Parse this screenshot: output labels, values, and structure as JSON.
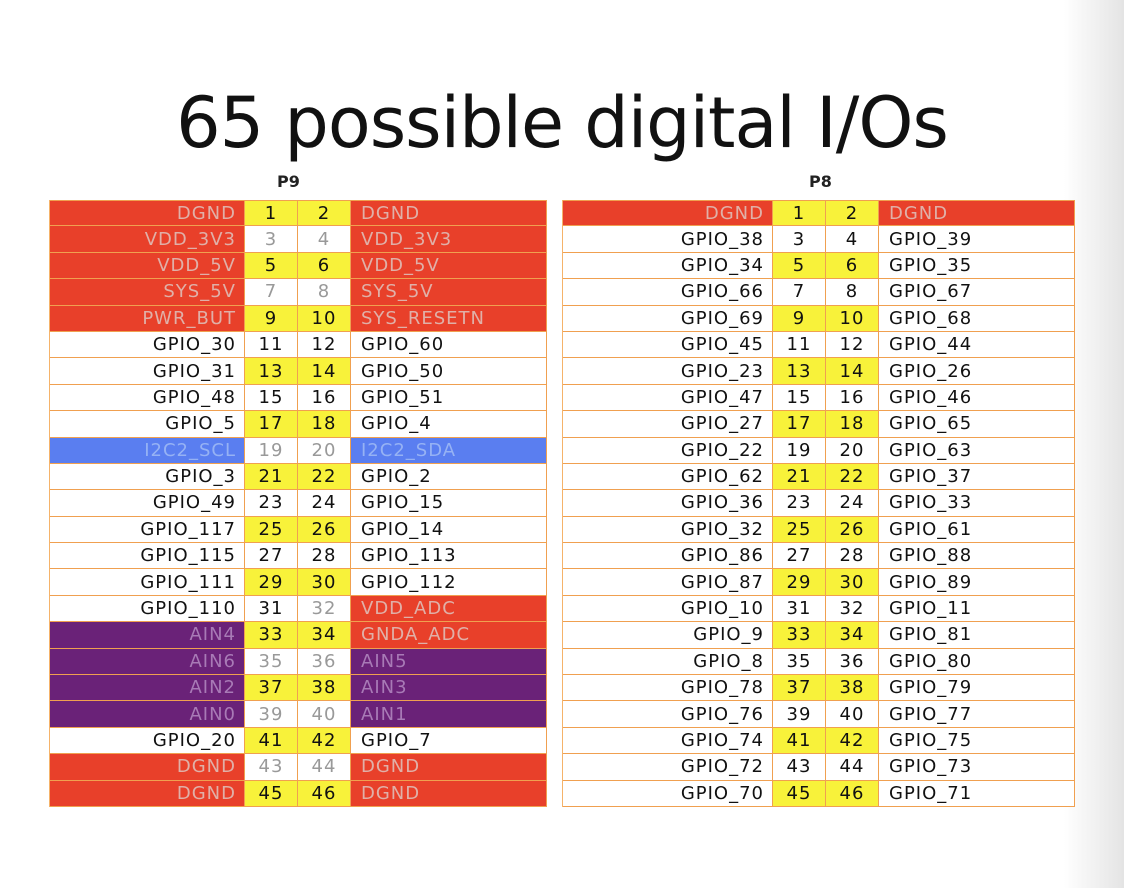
{
  "title": "65 possible digital I/Os",
  "headers": {
    "p9": "P9",
    "p8": "P8"
  },
  "colors": {
    "gpio": "#ffffff",
    "power": "#e8402a",
    "i2c": "#5a7ef0",
    "analog": "#6a2278",
    "pin_highlight": "#f8f23a",
    "border": "#f0a050"
  },
  "p9": [
    {
      "left": "DGND",
      "a": "1",
      "b": "2",
      "right": "DGND",
      "lt": "ground",
      "rt": "ground",
      "hl": true
    },
    {
      "left": "VDD_3V3",
      "a": "3",
      "b": "4",
      "right": "VDD_3V3",
      "lt": "power",
      "rt": "power",
      "hl": false
    },
    {
      "left": "VDD_5V",
      "a": "5",
      "b": "6",
      "right": "VDD_5V",
      "lt": "power",
      "rt": "power",
      "hl": true
    },
    {
      "left": "SYS_5V",
      "a": "7",
      "b": "8",
      "right": "SYS_5V",
      "lt": "power",
      "rt": "power",
      "hl": false
    },
    {
      "left": "PWR_BUT",
      "a": "9",
      "b": "10",
      "right": "SYS_RESETN",
      "lt": "power",
      "rt": "power",
      "hl": true
    },
    {
      "left": "GPIO_30",
      "a": "11",
      "b": "12",
      "right": "GPIO_60",
      "lt": "gpio",
      "rt": "gpio",
      "hl": false
    },
    {
      "left": "GPIO_31",
      "a": "13",
      "b": "14",
      "right": "GPIO_50",
      "lt": "gpio",
      "rt": "gpio",
      "hl": true
    },
    {
      "left": "GPIO_48",
      "a": "15",
      "b": "16",
      "right": "GPIO_51",
      "lt": "gpio",
      "rt": "gpio",
      "hl": false
    },
    {
      "left": "GPIO_5",
      "a": "17",
      "b": "18",
      "right": "GPIO_4",
      "lt": "gpio",
      "rt": "gpio",
      "hl": true
    },
    {
      "left": "I2C2_SCL",
      "a": "19",
      "b": "20",
      "right": "I2C2_SDA",
      "lt": "i2c",
      "rt": "i2c",
      "hl": false
    },
    {
      "left": "GPIO_3",
      "a": "21",
      "b": "22",
      "right": "GPIO_2",
      "lt": "gpio",
      "rt": "gpio",
      "hl": true
    },
    {
      "left": "GPIO_49",
      "a": "23",
      "b": "24",
      "right": "GPIO_15",
      "lt": "gpio",
      "rt": "gpio",
      "hl": false
    },
    {
      "left": "GPIO_117",
      "a": "25",
      "b": "26",
      "right": "GPIO_14",
      "lt": "gpio",
      "rt": "gpio",
      "hl": true
    },
    {
      "left": "GPIO_115",
      "a": "27",
      "b": "28",
      "right": "GPIO_113",
      "lt": "gpio",
      "rt": "gpio",
      "hl": false
    },
    {
      "left": "GPIO_111",
      "a": "29",
      "b": "30",
      "right": "GPIO_112",
      "lt": "gpio",
      "rt": "gpio",
      "hl": true
    },
    {
      "left": "GPIO_110",
      "a": "31",
      "b": "32",
      "right": "VDD_ADC",
      "lt": "gpio",
      "rt": "power",
      "hl": false
    },
    {
      "left": "AIN4",
      "a": "33",
      "b": "34",
      "right": "GNDA_ADC",
      "lt": "analog",
      "rt": "power",
      "hl": true
    },
    {
      "left": "AIN6",
      "a": "35",
      "b": "36",
      "right": "AIN5",
      "lt": "analog",
      "rt": "analog",
      "hl": false
    },
    {
      "left": "AIN2",
      "a": "37",
      "b": "38",
      "right": "AIN3",
      "lt": "analog",
      "rt": "analog",
      "hl": true
    },
    {
      "left": "AIN0",
      "a": "39",
      "b": "40",
      "right": "AIN1",
      "lt": "analog",
      "rt": "analog",
      "hl": false
    },
    {
      "left": "GPIO_20",
      "a": "41",
      "b": "42",
      "right": "GPIO_7",
      "lt": "gpio",
      "rt": "gpio",
      "hl": true
    },
    {
      "left": "DGND",
      "a": "43",
      "b": "44",
      "right": "DGND",
      "lt": "ground",
      "rt": "ground",
      "hl": false
    },
    {
      "left": "DGND",
      "a": "45",
      "b": "46",
      "right": "DGND",
      "lt": "ground",
      "rt": "ground",
      "hl": true
    }
  ],
  "p8": [
    {
      "left": "DGND",
      "a": "1",
      "b": "2",
      "right": "DGND",
      "lt": "ground",
      "rt": "ground",
      "hl": true
    },
    {
      "left": "GPIO_38",
      "a": "3",
      "b": "4",
      "right": "GPIO_39",
      "lt": "gpio",
      "rt": "gpio",
      "hl": false
    },
    {
      "left": "GPIO_34",
      "a": "5",
      "b": "6",
      "right": "GPIO_35",
      "lt": "gpio",
      "rt": "gpio",
      "hl": true
    },
    {
      "left": "GPIO_66",
      "a": "7",
      "b": "8",
      "right": "GPIO_67",
      "lt": "gpio",
      "rt": "gpio",
      "hl": false
    },
    {
      "left": "GPIO_69",
      "a": "9",
      "b": "10",
      "right": "GPIO_68",
      "lt": "gpio",
      "rt": "gpio",
      "hl": true
    },
    {
      "left": "GPIO_45",
      "a": "11",
      "b": "12",
      "right": "GPIO_44",
      "lt": "gpio",
      "rt": "gpio",
      "hl": false
    },
    {
      "left": "GPIO_23",
      "a": "13",
      "b": "14",
      "right": "GPIO_26",
      "lt": "gpio",
      "rt": "gpio",
      "hl": true
    },
    {
      "left": "GPIO_47",
      "a": "15",
      "b": "16",
      "right": "GPIO_46",
      "lt": "gpio",
      "rt": "gpio",
      "hl": false
    },
    {
      "left": "GPIO_27",
      "a": "17",
      "b": "18",
      "right": "GPIO_65",
      "lt": "gpio",
      "rt": "gpio",
      "hl": true
    },
    {
      "left": "GPIO_22",
      "a": "19",
      "b": "20",
      "right": "GPIO_63",
      "lt": "gpio",
      "rt": "gpio",
      "hl": false
    },
    {
      "left": "GPIO_62",
      "a": "21",
      "b": "22",
      "right": "GPIO_37",
      "lt": "gpio",
      "rt": "gpio",
      "hl": true
    },
    {
      "left": "GPIO_36",
      "a": "23",
      "b": "24",
      "right": "GPIO_33",
      "lt": "gpio",
      "rt": "gpio",
      "hl": false
    },
    {
      "left": "GPIO_32",
      "a": "25",
      "b": "26",
      "right": "GPIO_61",
      "lt": "gpio",
      "rt": "gpio",
      "hl": true
    },
    {
      "left": "GPIO_86",
      "a": "27",
      "b": "28",
      "right": "GPIO_88",
      "lt": "gpio",
      "rt": "gpio",
      "hl": false
    },
    {
      "left": "GPIO_87",
      "a": "29",
      "b": "30",
      "right": "GPIO_89",
      "lt": "gpio",
      "rt": "gpio",
      "hl": true
    },
    {
      "left": "GPIO_10",
      "a": "31",
      "b": "32",
      "right": "GPIO_11",
      "lt": "gpio",
      "rt": "gpio",
      "hl": false
    },
    {
      "left": "GPIO_9",
      "a": "33",
      "b": "34",
      "right": "GPIO_81",
      "lt": "gpio",
      "rt": "gpio",
      "hl": true
    },
    {
      "left": "GPIO_8",
      "a": "35",
      "b": "36",
      "right": "GPIO_80",
      "lt": "gpio",
      "rt": "gpio",
      "hl": false
    },
    {
      "left": "GPIO_78",
      "a": "37",
      "b": "38",
      "right": "GPIO_79",
      "lt": "gpio",
      "rt": "gpio",
      "hl": true
    },
    {
      "left": "GPIO_76",
      "a": "39",
      "b": "40",
      "right": "GPIO_77",
      "lt": "gpio",
      "rt": "gpio",
      "hl": false
    },
    {
      "left": "GPIO_74",
      "a": "41",
      "b": "42",
      "right": "GPIO_75",
      "lt": "gpio",
      "rt": "gpio",
      "hl": true
    },
    {
      "left": "GPIO_72",
      "a": "43",
      "b": "44",
      "right": "GPIO_73",
      "lt": "gpio",
      "rt": "gpio",
      "hl": false
    },
    {
      "left": "GPIO_70",
      "a": "45",
      "b": "46",
      "right": "GPIO_71",
      "lt": "gpio",
      "rt": "gpio",
      "hl": true
    }
  ]
}
